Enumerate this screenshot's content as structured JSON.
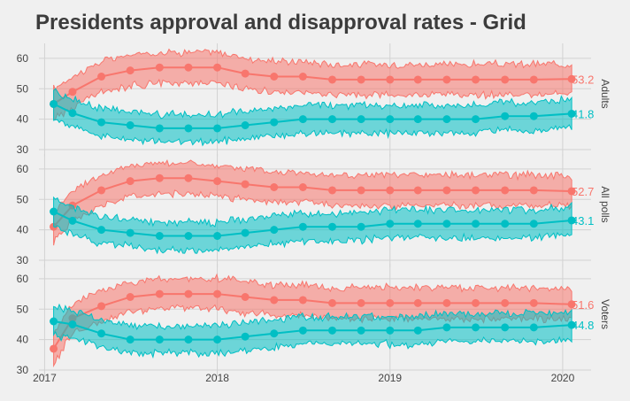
{
  "title": "Presidents approval and disapproval rates - Grid",
  "chart_data": {
    "type": "line",
    "title": "Presidents approval and disapproval rates - Grid",
    "x_ticks": [
      "2017",
      "2018",
      "2019",
      "2020"
    ],
    "xlim": [
      "2016-12-20",
      "2020-03-01"
    ],
    "y_ticks": [
      30,
      40,
      50,
      60
    ],
    "ylim": [
      30,
      62
    ],
    "grid": true,
    "colors": {
      "disapprove": "#f8766d",
      "approve": "#00bfc4",
      "panel_bg": "#f0f0f0",
      "grid": "#d2d2d2"
    },
    "x_dates": [
      "2017-01-20",
      "2017-03-01",
      "2017-05-01",
      "2017-07-01",
      "2017-09-01",
      "2017-11-01",
      "2018-01-01",
      "2018-03-01",
      "2018-05-01",
      "2018-07-01",
      "2018-09-01",
      "2018-11-01",
      "2019-01-01",
      "2019-03-01",
      "2019-05-01",
      "2019-07-01",
      "2019-09-01",
      "2019-11-01",
      "2020-01-20"
    ],
    "panels": [
      {
        "label": "Adults",
        "series": [
          {
            "key": "disapprove",
            "end_label": "53.2",
            "values": [
              45,
              49,
              54,
              56,
              57,
              57,
              57,
              55,
              54,
              54,
              53,
              53,
              53,
              53,
              53,
              53,
              53,
              53,
              53.2
            ],
            "band": 5
          },
          {
            "key": "approve",
            "end_label": "41.8",
            "values": [
              45,
              42,
              39,
              38,
              37,
              37,
              37,
              38,
              39,
              40,
              40,
              40,
              40,
              40,
              40,
              40,
              41,
              41,
              41.8
            ],
            "band": 4.5
          }
        ]
      },
      {
        "label": "All polls",
        "series": [
          {
            "key": "disapprove",
            "end_label": "52.7",
            "values": [
              41,
              48,
              53,
              56,
              57,
              57,
              56,
              55,
              54,
              54,
              53,
              53,
              53,
              53,
              53,
              53,
              53,
              53,
              52.7
            ],
            "band": 5
          },
          {
            "key": "approve",
            "end_label": "43.1",
            "values": [
              46,
              43,
              40,
              39,
              38,
              38,
              38,
              39,
              40,
              41,
              41,
              41,
              42,
              42,
              42,
              42,
              42,
              42,
              43.1
            ],
            "band": 4.5
          }
        ]
      },
      {
        "label": "Voters",
        "series": [
          {
            "key": "disapprove",
            "end_label": "51.6",
            "values": [
              37,
              47,
              51,
              54,
              55,
              55,
              55,
              54,
              53,
              53,
              52,
              52,
              52,
              52,
              52,
              52,
              52,
              52,
              51.6
            ],
            "band": 5
          },
          {
            "key": "approve",
            "end_label": "44.8",
            "values": [
              46,
              45,
              42,
              40,
              40,
              40,
              40,
              41,
              42,
              43,
              43,
              43,
              43,
              43,
              44,
              44,
              44,
              44,
              44.8
            ],
            "band": 4.5
          }
        ]
      }
    ]
  }
}
